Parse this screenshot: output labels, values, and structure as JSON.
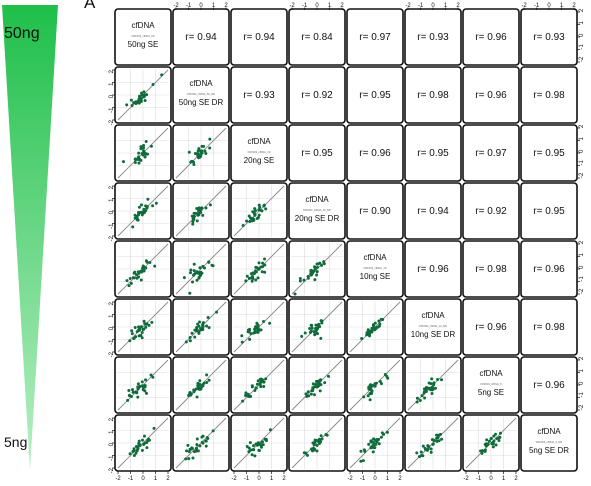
{
  "figure": {
    "panel_label": "A",
    "gradient_top_label": "50ng",
    "gradient_bottom_label": "5ng",
    "colors": {
      "wedge_top": "#1fbf4a",
      "wedge_bottom": "#b8f0c4",
      "points": "#0f6b3b",
      "diagonal": "#888888"
    }
  },
  "chart_data": {
    "type": "scatter",
    "layout": "pairs-matrix",
    "axis_range": [
      -2,
      2
    ],
    "axis_ticks": [
      "-2",
      "-1",
      "0",
      "1",
      "2"
    ],
    "variables": [
      {
        "name": "cfDNA",
        "sub": "FRF003_cfDNA_50",
        "label": "50ng SE"
      },
      {
        "name": "cfDNA",
        "sub": "FRF003_cfDNA_50_DR",
        "label": "50ng SE DR"
      },
      {
        "name": "cfDNA",
        "sub": "FRF003_cfDNA_20",
        "label": "20ng SE"
      },
      {
        "name": "cfDNA",
        "sub": "FRF003_cfDNA_20_DR",
        "label": "20ng SE DR"
      },
      {
        "name": "cfDNA",
        "sub": "FRF003_cfDNA_10",
        "label": "10ng SE"
      },
      {
        "name": "cfDNA",
        "sub": "FRF003_cfDNA_10_DR",
        "label": "10ng SE DR"
      },
      {
        "name": "cfDNA",
        "sub": "FRF003_cfDNA_5",
        "label": "5ng SE"
      },
      {
        "name": "cfDNA",
        "sub": "FRF003_cfDNA_5_DR",
        "label": "5ng SE DR"
      }
    ],
    "correlations": [
      {
        "row": 0,
        "col": 1,
        "text": "r= 0.94"
      },
      {
        "row": 0,
        "col": 2,
        "text": "r= 0.94"
      },
      {
        "row": 0,
        "col": 3,
        "text": "r= 0.84"
      },
      {
        "row": 0,
        "col": 4,
        "text": "r= 0.97"
      },
      {
        "row": 0,
        "col": 5,
        "text": "r= 0.93"
      },
      {
        "row": 0,
        "col": 6,
        "text": "r= 0.96"
      },
      {
        "row": 0,
        "col": 7,
        "text": "r= 0.93"
      },
      {
        "row": 1,
        "col": 2,
        "text": "r= 0.93"
      },
      {
        "row": 1,
        "col": 3,
        "text": "r= 0.92"
      },
      {
        "row": 1,
        "col": 4,
        "text": "r= 0.95"
      },
      {
        "row": 1,
        "col": 5,
        "text": "r= 0.98"
      },
      {
        "row": 1,
        "col": 6,
        "text": "r= 0.96"
      },
      {
        "row": 1,
        "col": 7,
        "text": "r= 0.98"
      },
      {
        "row": 2,
        "col": 3,
        "text": "r= 0.95"
      },
      {
        "row": 2,
        "col": 4,
        "text": "r= 0.96"
      },
      {
        "row": 2,
        "col": 5,
        "text": "r= 0.95"
      },
      {
        "row": 2,
        "col": 6,
        "text": "r= 0.97"
      },
      {
        "row": 2,
        "col": 7,
        "text": "r= 0.95"
      },
      {
        "row": 3,
        "col": 4,
        "text": "r= 0.90"
      },
      {
        "row": 3,
        "col": 5,
        "text": "r= 0.94"
      },
      {
        "row": 3,
        "col": 6,
        "text": "r= 0.92"
      },
      {
        "row": 3,
        "col": 7,
        "text": "r= 0.95"
      },
      {
        "row": 4,
        "col": 5,
        "text": "r= 0.96"
      },
      {
        "row": 4,
        "col": 6,
        "text": "r= 0.98"
      },
      {
        "row": 4,
        "col": 7,
        "text": "r= 0.96"
      },
      {
        "row": 5,
        "col": 6,
        "text": "r= 0.96"
      },
      {
        "row": 5,
        "col": 7,
        "text": "r= 0.98"
      },
      {
        "row": 6,
        "col": 7,
        "text": "r= 0.96"
      }
    ],
    "grid": true,
    "identity_line": true
  }
}
